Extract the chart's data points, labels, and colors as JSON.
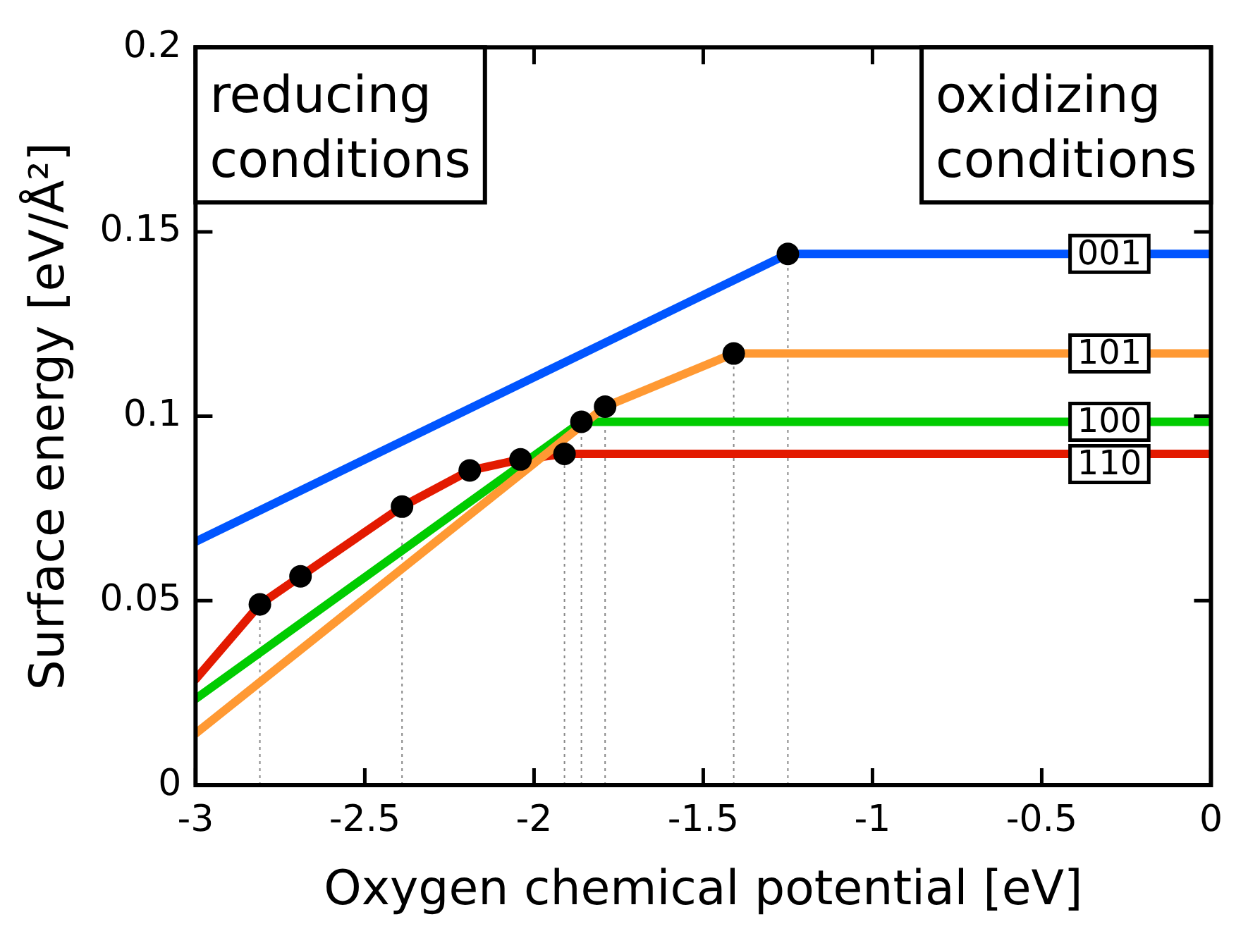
{
  "chart_data": {
    "type": "line",
    "xlabel": "Oxygen chemical potential [eV]",
    "ylabel": "Surface energy [eV/Å²]",
    "xlim": [
      -3,
      0
    ],
    "ylim": [
      0,
      0.2
    ],
    "xticks": [
      -3,
      -2.5,
      -2,
      -1.5,
      -1,
      -0.5,
      0
    ],
    "yticks": [
      0,
      0.05,
      0.1,
      0.15,
      0.2
    ],
    "grid": false,
    "legend": false,
    "marker": "none",
    "line_style": "solid",
    "annotations": [
      "reducing conditions",
      "oxidizing conditions"
    ],
    "series": [
      {
        "name": "001",
        "color": "#0055ff",
        "x": [
          -3,
          -1.25,
          0
        ],
        "values": [
          0.066,
          0.144,
          0.144
        ]
      },
      {
        "name": "101",
        "color": "#ff9933",
        "x": [
          -3,
          -1.79,
          -1.41,
          0
        ],
        "values": [
          0.014,
          0.1026,
          0.117,
          0.117
        ]
      },
      {
        "name": "100",
        "color": "#00cc00",
        "x": [
          -3,
          -1.86,
          0
        ],
        "values": [
          0.0234,
          0.0985,
          0.0985
        ]
      },
      {
        "name": "110",
        "color": "#e31a00",
        "x": [
          -3,
          -2.81,
          -2.69,
          -2.39,
          -2.19,
          -2.04,
          -1.91,
          0
        ],
        "values": [
          0.0287,
          0.049,
          0.0566,
          0.0755,
          0.0853,
          0.0883,
          0.0898,
          0.0898
        ]
      },
      {
        "type": "scatter",
        "marker": "circle",
        "color": "#000000",
        "x": [
          -2.81,
          -2.69,
          -2.39,
          -2.19,
          -2.04,
          -1.91,
          -1.86,
          -1.79,
          -1.41,
          -1.25
        ],
        "values": [
          0.049,
          0.0566,
          0.0755,
          0.0853,
          0.0883,
          0.0898,
          0.0985,
          0.1026,
          0.117,
          0.144
        ]
      }
    ],
    "ref_lines": [
      {
        "axis": "x",
        "value": -2.81,
        "color": "#888888",
        "line_style": "dotted"
      },
      {
        "axis": "x",
        "value": -2.39,
        "color": "#888888",
        "line_style": "dotted"
      },
      {
        "axis": "x",
        "value": -1.91,
        "color": "#888888",
        "line_style": "dotted"
      },
      {
        "axis": "x",
        "value": -1.86,
        "color": "#888888",
        "line_style": "dotted"
      },
      {
        "axis": "x",
        "value": -1.79,
        "color": "#888888",
        "line_style": "dotted"
      },
      {
        "axis": "x",
        "value": -1.41,
        "color": "#888888",
        "line_style": "dotted"
      },
      {
        "axis": "x",
        "value": -1.25,
        "color": "#888888",
        "line_style": "dotted"
      }
    ]
  }
}
